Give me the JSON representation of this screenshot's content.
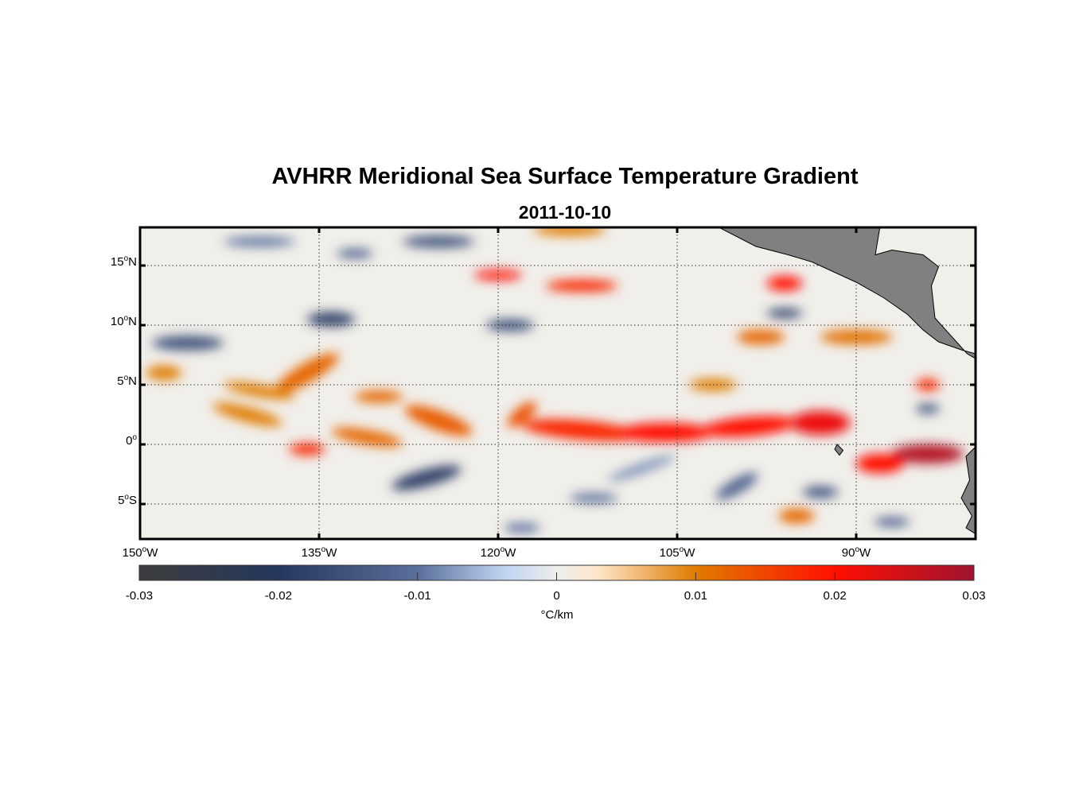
{
  "title": "AVHRR Meridional Sea Surface Temperature Gradient",
  "subtitle": "2011-10-10",
  "map": {
    "lon_range": [
      -150,
      -80
    ],
    "lat_range": [
      -8,
      18.2
    ],
    "lat_ticks": [
      {
        "v": 15,
        "label": "15",
        "hem": "N"
      },
      {
        "v": 10,
        "label": "10",
        "hem": "N"
      },
      {
        "v": 5,
        "label": "5",
        "hem": "N"
      },
      {
        "v": 0,
        "label": "0",
        "hem": ""
      },
      {
        "v": -5,
        "label": "5",
        "hem": "S"
      }
    ],
    "lon_ticks": [
      {
        "v": -150,
        "label": "150",
        "hem": "W"
      },
      {
        "v": -135,
        "label": "135",
        "hem": "W"
      },
      {
        "v": -120,
        "label": "120",
        "hem": "W"
      },
      {
        "v": -105,
        "label": "105",
        "hem": "W"
      },
      {
        "v": -90,
        "label": "90",
        "hem": "W"
      }
    ],
    "land_color": "#808080",
    "features": [
      [
        -113,
        1.2,
        5,
        0.8,
        0.018,
        -5
      ],
      [
        -106,
        1.0,
        4,
        0.8,
        0.02,
        0
      ],
      [
        -99,
        1.5,
        4,
        0.8,
        0.02,
        5
      ],
      [
        -93,
        1.8,
        2.5,
        1,
        0.022,
        0
      ],
      [
        -84,
        -0.8,
        3,
        0.8,
        0.028,
        0
      ],
      [
        -88,
        -1.6,
        2,
        0.8,
        0.02,
        0
      ],
      [
        -125,
        2,
        3,
        0.8,
        0.013,
        -20
      ],
      [
        -131,
        0.6,
        3,
        0.6,
        0.012,
        -10
      ],
      [
        -136,
        -0.4,
        1.5,
        0.5,
        0.018,
        0
      ],
      [
        -141,
        2.5,
        3,
        0.6,
        0.01,
        -15
      ],
      [
        -136,
        6,
        3,
        0.8,
        0.012,
        30
      ],
      [
        -140,
        4.5,
        3,
        0.5,
        0.01,
        -10
      ],
      [
        -120,
        14.2,
        2,
        0.4,
        0.02,
        0
      ],
      [
        -113,
        13.3,
        3,
        0.5,
        0.018,
        0
      ],
      [
        -148,
        6,
        1.5,
        0.6,
        0.01,
        0
      ],
      [
        -130,
        4,
        2,
        0.5,
        0.012,
        0
      ],
      [
        -98,
        9,
        2,
        0.6,
        0.012,
        0
      ],
      [
        -96,
        13.5,
        1.5,
        0.6,
        0.02,
        0
      ],
      [
        -90,
        9,
        3,
        0.6,
        0.011,
        0
      ],
      [
        -114,
        18,
        3,
        0.5,
        0.01,
        0
      ],
      [
        -95,
        -6,
        1.5,
        0.6,
        0.012,
        0
      ],
      [
        -84,
        5,
        1,
        0.5,
        0.018,
        0
      ],
      [
        -118,
        2.5,
        1.5,
        0.6,
        0.014,
        40
      ],
      [
        -102,
        5,
        2,
        0.5,
        0.01,
        0
      ],
      [
        -126,
        -2.8,
        3,
        0.7,
        -0.018,
        15
      ],
      [
        -134,
        10.5,
        2,
        0.6,
        -0.018,
        0
      ],
      [
        -146,
        8.5,
        3,
        0.6,
        -0.015,
        0
      ],
      [
        -119,
        10,
        2,
        0.5,
        -0.015,
        0
      ],
      [
        -125,
        17,
        3,
        0.5,
        -0.015,
        0
      ],
      [
        -140,
        17,
        3,
        0.4,
        -0.01,
        0
      ],
      [
        -112,
        -4.5,
        2,
        0.4,
        -0.01,
        0
      ],
      [
        -100,
        -3.5,
        2,
        0.6,
        -0.012,
        30
      ],
      [
        -93,
        -4,
        1.5,
        0.5,
        -0.014,
        0
      ],
      [
        -87,
        -6.5,
        1.5,
        0.4,
        -0.012,
        0
      ],
      [
        -118,
        -7,
        1.5,
        0.4,
        -0.01,
        0
      ],
      [
        -84,
        3,
        1,
        0.4,
        -0.015,
        0
      ],
      [
        -132,
        16,
        1.5,
        0.4,
        -0.012,
        0
      ],
      [
        -96,
        11,
        1.5,
        0.4,
        -0.018,
        0
      ],
      [
        -108,
        -2,
        3,
        0.4,
        -0.008,
        20
      ]
    ],
    "land": [
      [
        [
          -101.7,
          18.3
        ],
        [
          -98.4,
          16.6
        ],
        [
          -95.7,
          15.9
        ],
        [
          -93.7,
          15.3
        ],
        [
          -90,
          13.6
        ],
        [
          -87.7,
          12.3
        ],
        [
          -85.7,
          10.9
        ],
        [
          -84.4,
          9.6
        ],
        [
          -83.1,
          8.6
        ],
        [
          -81.1,
          7.9
        ],
        [
          -80,
          7.6
        ],
        [
          -80,
          7.2
        ],
        [
          -80.7,
          7.6
        ],
        [
          -83.4,
          10.6
        ],
        [
          -83.7,
          13.3
        ],
        [
          -83.1,
          14.9
        ],
        [
          -84.4,
          15.9
        ],
        [
          -87,
          16.3
        ],
        [
          -88.4,
          15.9
        ],
        [
          -88,
          18.3
        ]
      ],
      [
        [
          -80,
          -0.2
        ],
        [
          -80.8,
          -1
        ],
        [
          -80.5,
          -3
        ],
        [
          -81.2,
          -4.5
        ],
        [
          -80.3,
          -6
        ],
        [
          -80.8,
          -7
        ],
        [
          -80,
          -7.5
        ]
      ],
      [
        [
          -91.6,
          0
        ],
        [
          -91.1,
          -0.5
        ],
        [
          -91.4,
          -0.9
        ],
        [
          -91.8,
          -0.4
        ]
      ]
    ]
  },
  "colorbar": {
    "ticks": [
      "-0.03",
      "-0.02",
      "-0.01",
      "0",
      "0.01",
      "0.02",
      "0.03"
    ],
    "unit": "°C/km",
    "stops": [
      [
        -0.03,
        "#3d3d3d"
      ],
      [
        -0.02,
        "#25375e"
      ],
      [
        -0.01,
        "#5a6f9a"
      ],
      [
        -0.004,
        "#bcd1ef"
      ],
      [
        0,
        "#eeeeee"
      ],
      [
        0.003,
        "#fde6c8"
      ],
      [
        0.01,
        "#e07b00"
      ],
      [
        0.02,
        "#ff1000"
      ],
      [
        0.03,
        "#a01330"
      ]
    ]
  }
}
